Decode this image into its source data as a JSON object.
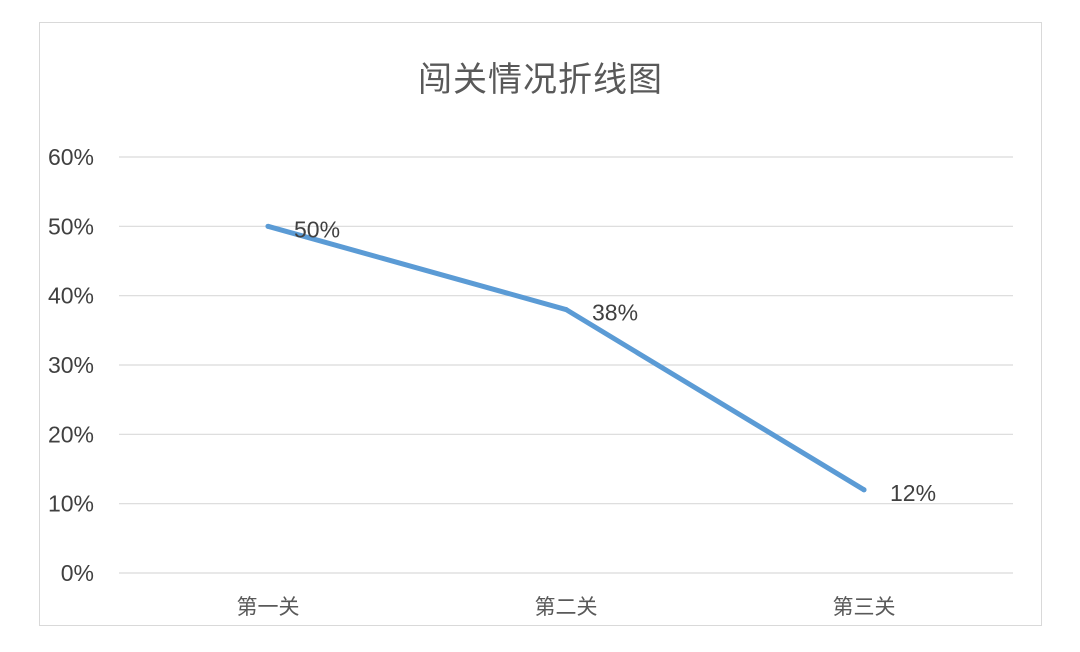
{
  "chart_data": {
    "type": "line",
    "title": "闯关情况折线图",
    "categories": [
      "第一关",
      "第二关",
      "第三关"
    ],
    "series": [
      {
        "values": [
          0.5,
          0.38,
          0.12
        ],
        "color": "#5b9bd5"
      }
    ],
    "data_labels": [
      "50%",
      "38%",
      "12%"
    ],
    "y_ticks": [
      "0%",
      "10%",
      "20%",
      "30%",
      "40%",
      "50%",
      "60%"
    ],
    "ylim": [
      0,
      0.6
    ],
    "grid": true,
    "legend": "none"
  }
}
